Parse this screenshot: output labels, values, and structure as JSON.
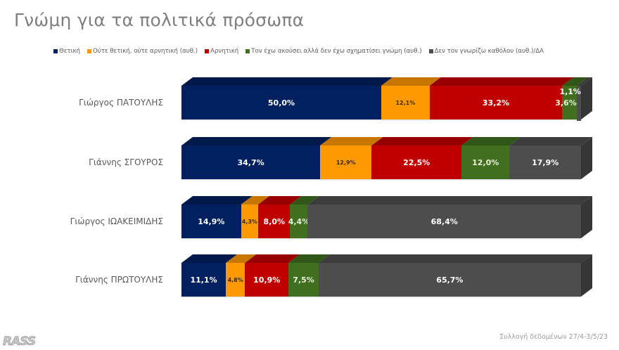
{
  "title": "Γνώμη για τα πολιτικά πρόσωπα",
  "legend": [
    {
      "label": "Θετική",
      "color": "#002060"
    },
    {
      "label": "Ούτε θετική, ούτε αρνητική (αυθ.)",
      "color": "#ff9900"
    },
    {
      "label": "Αρνητική",
      "color": "#c00000"
    },
    {
      "label": "Τον έχω ακούσει αλλά δεν έχω σχηματίσει γνώμη (αυθ.)",
      "color": "#3f6f1f"
    },
    {
      "label": "Δεν τον γνωρίζω καθόλου (αυθ.)/ΔΑ",
      "color": "#4d4d4d"
    }
  ],
  "rows": [
    {
      "name": "Γιώργος ΠΑΤΟΥΛΗΣ",
      "labels": [
        "50,0%",
        "12,1%",
        "33,2%",
        "3,6%",
        "1,1%"
      ]
    },
    {
      "name": "Γιάννης ΣΓΟΥΡΟΣ",
      "labels": [
        "34,7%",
        "12,9%",
        "22,5%",
        "12,0%",
        "17,9%"
      ]
    },
    {
      "name": "Γιώργος ΙΩΑΚΕΙΜΙΔΗΣ",
      "labels": [
        "14,9%",
        "4,3%",
        "8,0%",
        "4,4%",
        "68,4%"
      ]
    },
    {
      "name": "Γιάννης ΠΡΩΤΟΥΛΗΣ",
      "labels": [
        "11,1%",
        "4,8%",
        "10,9%",
        "7,5%",
        "65,7%"
      ]
    }
  ],
  "footer": {
    "logo": "RASS",
    "date_note": "Συλλογή δεδομένων 27/4-3/5/23"
  },
  "chart_data": {
    "type": "bar",
    "orientation": "horizontal",
    "stacked": true,
    "percent_stacked": true,
    "title": "Γνώμη για τα πολιτικά πρόσωπα",
    "categories": [
      "Γιώργος ΠΑΤΟΥΛΗΣ",
      "Γιάννης ΣΓΟΥΡΟΣ",
      "Γιώργος ΙΩΑΚΕΙΜΙΔΗΣ",
      "Γιάννης ΠΡΩΤΟΥΛΗΣ"
    ],
    "series": [
      {
        "name": "Θετική",
        "color": "#002060",
        "values": [
          50.0,
          34.7,
          14.9,
          11.1
        ]
      },
      {
        "name": "Ούτε θετική, ούτε αρνητική (αυθ.)",
        "color": "#ff9900",
        "values": [
          12.1,
          12.9,
          4.3,
          4.8
        ]
      },
      {
        "name": "Αρνητική",
        "color": "#c00000",
        "values": [
          33.2,
          22.5,
          8.0,
          10.9
        ]
      },
      {
        "name": "Τον έχω ακούσει αλλά δεν έχω σχηματίσει γνώμη (αυθ.)",
        "color": "#3f6f1f",
        "values": [
          3.6,
          12.0,
          4.4,
          7.5
        ]
      },
      {
        "name": "Δεν τον γνωρίζω καθόλου (αυθ.)/ΔΑ",
        "color": "#4d4d4d",
        "values": [
          1.1,
          17.9,
          68.4,
          65.7
        ]
      }
    ],
    "xlabel": "",
    "ylabel": "",
    "xlim": [
      0,
      100
    ],
    "grid": false,
    "legend_position": "top",
    "style": "3d",
    "annotation": "Συλλογή δεδομένων 27/4-3/5/23"
  }
}
